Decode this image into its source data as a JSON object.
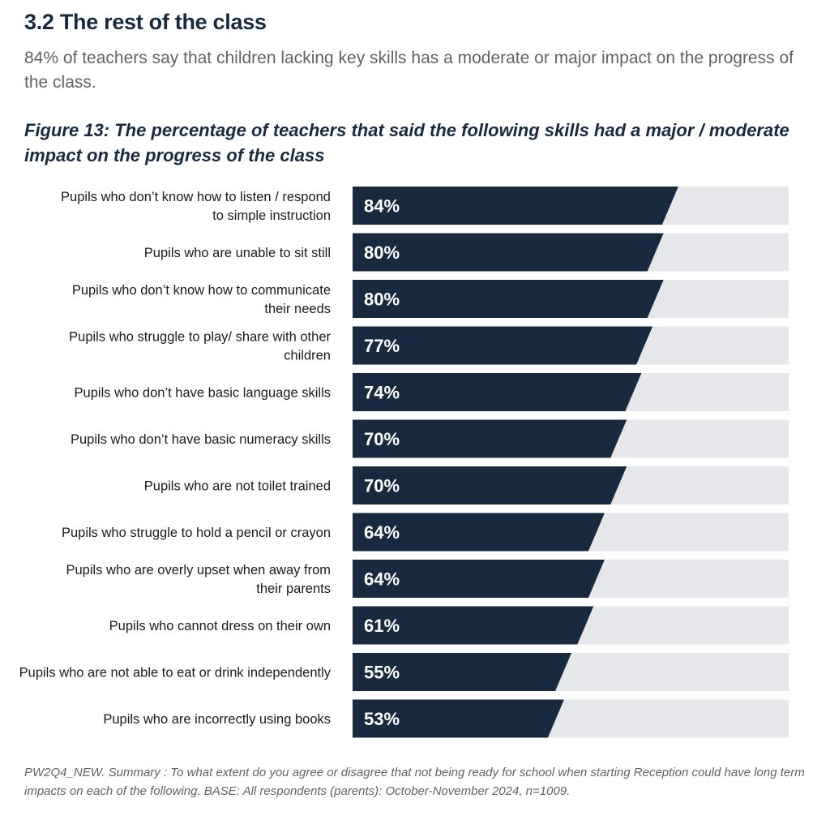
{
  "section": {
    "title": "3.2 The rest of the class",
    "intro": "84% of teachers say that children lacking key skills has a moderate or major impact on the progress of the class."
  },
  "figure": {
    "title": "Figure 13: The percentage of teachers that said the following skills had a major / moderate impact on the progress of the class",
    "footnote": "PW2Q4_NEW. Summary : To what extent do you agree or disagree that not being ready for school when starting Reception could have long term impacts on each of the following. BASE: All respondents (parents): October-November 2024, n=1009."
  },
  "colors": {
    "bar": "#172a40",
    "track": "#e6e7ea",
    "label": "#1a1a1a",
    "value_text": "#ffffff"
  },
  "chart_data": {
    "type": "bar",
    "orientation": "horizontal",
    "xlim": [
      0,
      100
    ],
    "value_suffix": "%",
    "categories": [
      [
        "Pupils who don’t know how to listen / respond",
        "to simple instruction"
      ],
      [
        "Pupils who are unable to sit still"
      ],
      [
        "Pupils who don’t know how to communicate",
        "their needs"
      ],
      [
        "Pupils who struggle to play/ share with other",
        "children"
      ],
      [
        "Pupils who don’t have basic language skills"
      ],
      [
        "Pupils who don’t have basic numeracy skills"
      ],
      [
        "Pupils who are not toilet trained"
      ],
      [
        "Pupils who struggle to hold a pencil or crayon"
      ],
      [
        "Pupils who are overly upset when away from",
        "their parents"
      ],
      [
        "Pupils who cannot dress on their own"
      ],
      [
        "Pupils who are not able to eat or drink independently"
      ],
      [
        "Pupils who are incorrectly using books"
      ]
    ],
    "values": [
      84,
      80,
      80,
      77,
      74,
      70,
      70,
      64,
      64,
      61,
      55,
      53
    ]
  }
}
